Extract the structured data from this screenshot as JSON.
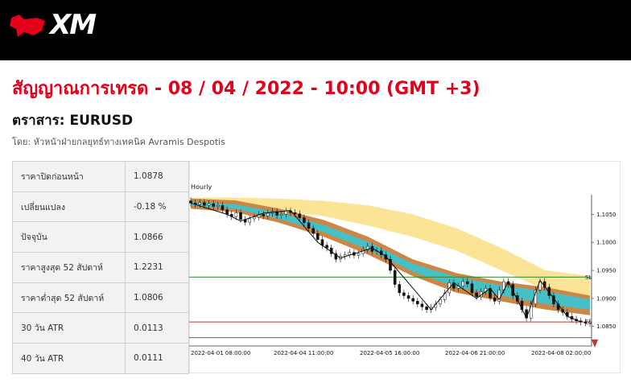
{
  "brand": {
    "name": "XM",
    "accent_color": "#e2001a"
  },
  "page": {
    "title": "สัญญาณการเทรด - 08 / 04 / 2022 - 10:00 (GMT +3)",
    "instrument": "ตราสาร: EURUSD",
    "author": "โดย: หัวหน้าฝ่ายกลยุทธ์ทางเทคนิค Avramis Despotis"
  },
  "stats": [
    {
      "label": "ราคาปิดก่อนหน้า",
      "value": "1.0878"
    },
    {
      "label": "เปลี่ยนแปลง",
      "value": "-0.18 %"
    },
    {
      "label": "ปัจจุบัน",
      "value": "1.0866"
    },
    {
      "label": "ราคาสูงสุด 52 สัปดาห์",
      "value": "1.2231"
    },
    {
      "label": "ราคาต่ำสุด 52 สัปดาห์",
      "value": "1.0806"
    },
    {
      "label": "30 วัน ATR",
      "value": "0.0113"
    },
    {
      "label": "40 วัน ATR",
      "value": "0.0111"
    }
  ],
  "chart_data": {
    "type": "candlestick",
    "timeframe_label": "Hourly",
    "x_tick_labels": [
      "2022-04-01 08:00:00",
      "2022-04-04 11:00:00",
      "2022-04-05 16:00:00",
      "2022-04-06 21:00:00",
      "2022-04-08 02:00:00"
    ],
    "y_tick_labels": [
      "1.1050",
      "1.1000",
      "1.0950",
      "1.0900",
      "1.0850"
    ],
    "ylim": [
      1.0818,
      1.1085
    ],
    "levels": [
      {
        "label": "SL",
        "value": 1.0938,
        "color": "#2e8b2e"
      },
      {
        "label": "EL",
        "value": 1.0858,
        "color": "#c0392b"
      },
      {
        "label": "",
        "value": 1.083,
        "color": "#2e8b2e"
      }
    ],
    "close_series": [
      1.107,
      1.1068,
      1.1071,
      1.1066,
      1.1069,
      1.1064,
      1.1066,
      1.1058,
      1.105,
      1.1046,
      1.1053,
      1.1041,
      1.1036,
      1.1042,
      1.1045,
      1.105,
      1.1047,
      1.1052,
      1.1055,
      1.1048,
      1.105,
      1.1056,
      1.1053,
      1.1051,
      1.1044,
      1.1035,
      1.1025,
      1.1016,
      1.1005,
      1.0995,
      1.099,
      1.098,
      1.097,
      1.0975,
      1.0978,
      1.0982,
      1.0977,
      1.098,
      1.0987,
      1.0993,
      1.0984,
      1.0985,
      1.0978,
      1.097,
      1.095,
      1.0925,
      1.091,
      1.0905,
      1.09,
      1.0895,
      1.089,
      1.0885,
      1.088,
      1.0884,
      1.089,
      1.0898,
      1.091,
      1.0928,
      1.0918,
      1.0922,
      1.093,
      1.0926,
      1.091,
      1.0903,
      1.0912,
      1.0918,
      1.0901,
      1.0895,
      1.0915,
      1.093,
      1.0925,
      1.0905,
      1.0895,
      1.088,
      1.0865,
      1.089,
      1.0915,
      1.093,
      1.092,
      1.0905,
      1.089,
      1.088,
      1.0875,
      1.0868,
      1.0863,
      1.086,
      1.0858,
      1.0856,
      1.0858
    ],
    "zigzag": [
      [
        0,
        1.107
      ],
      [
        8,
        1.105
      ],
      [
        11,
        1.1038
      ],
      [
        16,
        1.1052
      ],
      [
        22,
        1.1057
      ],
      [
        28,
        1.1
      ],
      [
        33,
        1.0972
      ],
      [
        40,
        1.099
      ],
      [
        43,
        1.0975
      ],
      [
        53,
        1.088
      ],
      [
        58,
        1.0928
      ],
      [
        63,
        1.09
      ],
      [
        66,
        1.0918
      ],
      [
        68,
        1.0898
      ],
      [
        70,
        1.093
      ],
      [
        74,
        1.0865
      ],
      [
        77,
        1.0932
      ],
      [
        83,
        1.0868
      ],
      [
        86,
        1.0858
      ]
    ],
    "bands": [
      {
        "name": "outer",
        "color": "#fbe38f",
        "upper": [
          1.108,
          1.108,
          1.1078,
          1.1074,
          1.1066,
          1.105,
          1.1025,
          1.099,
          1.095,
          1.094
        ],
        "lower": [
          1.1061,
          1.1061,
          1.1056,
          1.1047,
          1.103,
          1.101,
          1.0985,
          1.095,
          1.0915,
          1.09
        ]
      },
      {
        "name": "middle-outer",
        "color": "#c8813e",
        "upper": [
          1.1078,
          1.1075,
          1.106,
          1.104,
          1.101,
          1.097,
          1.0945,
          1.093,
          1.092,
          1.0905
        ],
        "lower": [
          1.106,
          1.1054,
          1.1035,
          1.101,
          1.0978,
          1.094,
          1.091,
          1.0895,
          1.088,
          1.087
        ]
      },
      {
        "name": "middle-inner",
        "color": "#3ec3cf",
        "upper": [
          1.1073,
          1.1068,
          1.1053,
          1.1031,
          1.1001,
          1.0962,
          1.0938,
          1.0923,
          1.0913,
          1.0898
        ],
        "lower": [
          1.1066,
          1.106,
          1.1042,
          1.1018,
          1.0987,
          1.0948,
          1.092,
          1.0905,
          1.089,
          1.088
        ]
      }
    ]
  }
}
